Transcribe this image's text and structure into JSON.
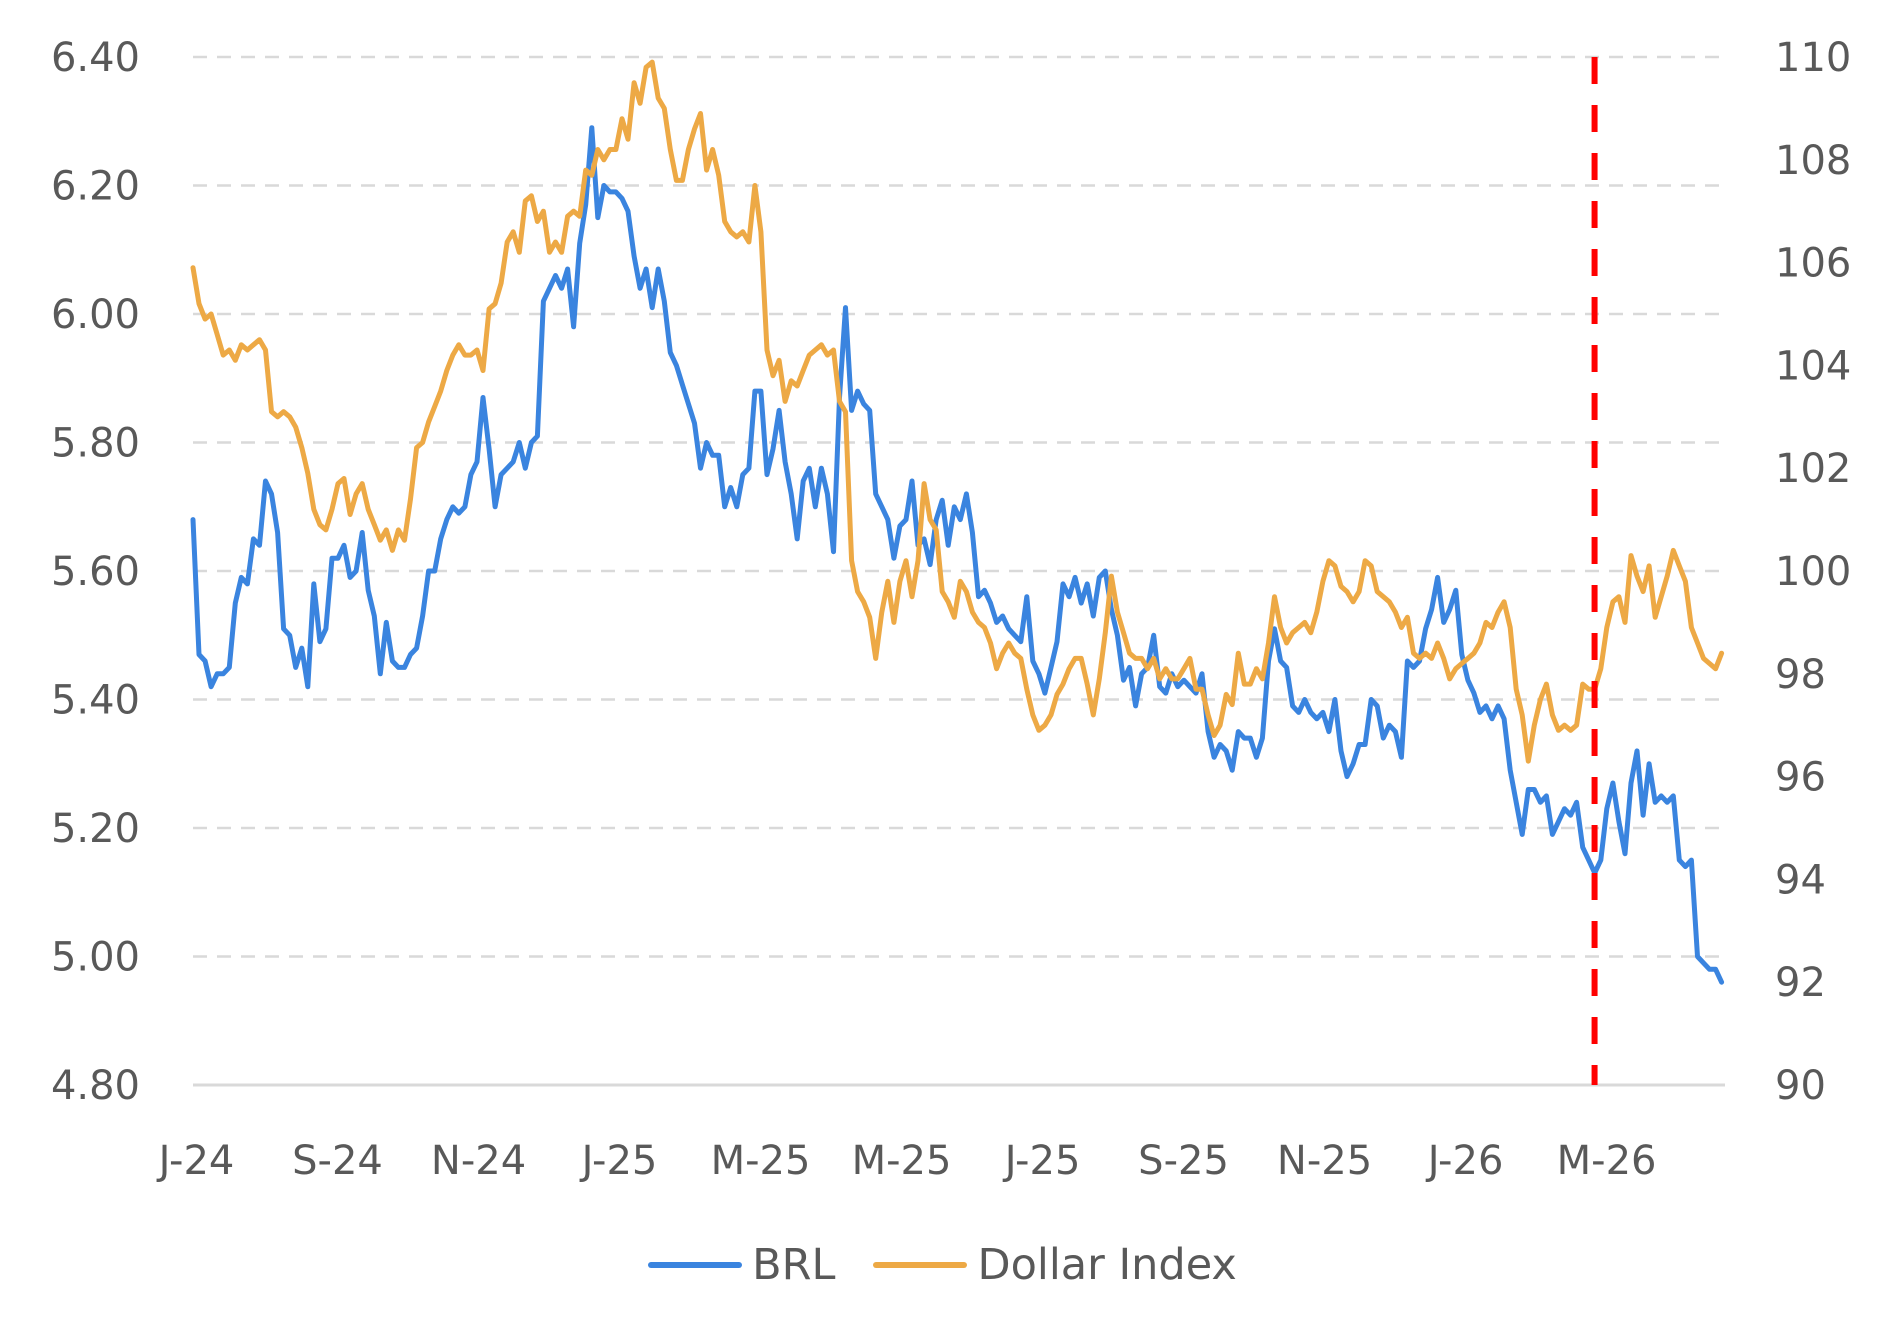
{
  "chart_data": {
    "type": "line",
    "title": "",
    "xlabel": "",
    "ylabel": "",
    "x_unit": "months since Jun-2024",
    "x_start": -0.05,
    "x_step": 0.0857,
    "x_ticks": [
      {
        "value": 0,
        "label": "J-24"
      },
      {
        "value": 2,
        "label": "S-24"
      },
      {
        "value": 4,
        "label": "N-24"
      },
      {
        "value": 6,
        "label": "J-25"
      },
      {
        "value": 8,
        "label": "M-25"
      },
      {
        "value": 10,
        "label": "M-25"
      },
      {
        "value": 12,
        "label": "J-25"
      },
      {
        "value": 14,
        "label": "S-25"
      },
      {
        "value": 16,
        "label": "N-25"
      },
      {
        "value": 18,
        "label": "J-26"
      },
      {
        "value": 20,
        "label": "M-26"
      }
    ],
    "xlim": [
      -0.05,
      21.68
    ],
    "y_left": {
      "ylim": [
        4.8,
        6.4
      ],
      "ticks": [
        "4.80",
        "5.00",
        "5.20",
        "5.40",
        "5.60",
        "5.80",
        "6.00",
        "6.20",
        "6.40"
      ],
      "tick_values": [
        4.8,
        5.0,
        5.2,
        5.4,
        5.6,
        5.8,
        6.0,
        6.2,
        6.4
      ]
    },
    "y_right": {
      "ylim": [
        90,
        110
      ],
      "ticks": [
        "90",
        "92",
        "94",
        "96",
        "98",
        "100",
        "102",
        "104",
        "106",
        "108",
        "110"
      ],
      "tick_values": [
        90,
        92,
        94,
        96,
        98,
        100,
        102,
        104,
        106,
        108,
        110
      ]
    },
    "grid": true,
    "legend_position": "bottom-center",
    "vertical_marker": {
      "x": 19.83,
      "color": "#FF0000",
      "style": "dashed"
    },
    "series": [
      {
        "name": "BRL",
        "axis": "left",
        "color": "#3A84DF",
        "values": [
          5.68,
          5.47,
          5.46,
          5.42,
          5.44,
          5.44,
          5.45,
          5.55,
          5.59,
          5.58,
          5.65,
          5.64,
          5.74,
          5.72,
          5.66,
          5.51,
          5.5,
          5.45,
          5.48,
          5.42,
          5.58,
          5.49,
          5.51,
          5.62,
          5.62,
          5.64,
          5.59,
          5.6,
          5.66,
          5.57,
          5.53,
          5.44,
          5.52,
          5.46,
          5.45,
          5.45,
          5.47,
          5.48,
          5.53,
          5.6,
          5.6,
          5.65,
          5.68,
          5.7,
          5.69,
          5.7,
          5.75,
          5.77,
          5.87,
          5.79,
          5.7,
          5.75,
          5.76,
          5.77,
          5.8,
          5.76,
          5.8,
          5.81,
          6.02,
          6.04,
          6.06,
          6.04,
          6.07,
          5.98,
          6.11,
          6.17,
          6.29,
          6.15,
          6.2,
          6.19,
          6.19,
          6.18,
          6.16,
          6.09,
          6.04,
          6.07,
          6.01,
          6.07,
          6.02,
          5.94,
          5.92,
          5.89,
          5.86,
          5.83,
          5.76,
          5.8,
          5.78,
          5.78,
          5.7,
          5.73,
          5.7,
          5.75,
          5.76,
          5.88,
          5.88,
          5.75,
          5.79,
          5.85,
          5.77,
          5.72,
          5.65,
          5.74,
          5.76,
          5.7,
          5.76,
          5.72,
          5.63,
          5.87,
          6.01,
          5.85,
          5.88,
          5.86,
          5.85,
          5.72,
          5.7,
          5.68,
          5.62,
          5.67,
          5.68,
          5.74,
          5.64,
          5.65,
          5.61,
          5.68,
          5.71,
          5.64,
          5.7,
          5.68,
          5.72,
          5.66,
          5.56,
          5.57,
          5.55,
          5.52,
          5.53,
          5.51,
          5.5,
          5.49,
          5.56,
          5.46,
          5.44,
          5.41,
          5.45,
          5.49,
          5.58,
          5.56,
          5.59,
          5.55,
          5.58,
          5.53,
          5.59,
          5.6,
          5.54,
          5.5,
          5.43,
          5.45,
          5.39,
          5.44,
          5.45,
          5.5,
          5.42,
          5.41,
          5.44,
          5.42,
          5.43,
          5.42,
          5.41,
          5.44,
          5.35,
          5.31,
          5.33,
          5.32,
          5.29,
          5.35,
          5.34,
          5.34,
          5.31,
          5.34,
          5.46,
          5.51,
          5.46,
          5.45,
          5.39,
          5.38,
          5.4,
          5.38,
          5.37,
          5.38,
          5.35,
          5.4,
          5.32,
          5.28,
          5.3,
          5.33,
          5.33,
          5.4,
          5.39,
          5.34,
          5.36,
          5.35,
          5.31,
          5.46,
          5.45,
          5.46,
          5.51,
          5.54,
          5.59,
          5.52,
          5.54,
          5.57,
          5.47,
          5.43,
          5.41,
          5.38,
          5.39,
          5.37,
          5.39,
          5.37,
          5.29,
          5.24,
          5.19,
          5.26,
          5.26,
          5.24,
          5.25,
          5.19,
          5.21,
          5.23,
          5.22,
          5.24,
          5.17,
          5.15,
          5.13,
          5.15,
          5.23,
          5.27,
          5.21,
          5.16,
          5.27,
          5.32,
          5.22,
          5.3,
          5.24,
          5.25,
          5.24,
          5.25,
          5.15,
          5.14,
          5.15,
          5.0,
          4.99,
          4.98,
          4.98,
          4.96
        ]
      },
      {
        "name": "Dollar Index",
        "axis": "right",
        "color": "#EDA945",
        "values": [
          105.9,
          105.2,
          104.9,
          105.0,
          104.6,
          104.2,
          104.3,
          104.1,
          104.4,
          104.3,
          104.4,
          104.5,
          104.3,
          103.1,
          103.0,
          103.1,
          103.0,
          102.8,
          102.4,
          101.9,
          101.2,
          100.9,
          100.8,
          101.2,
          101.7,
          101.8,
          101.1,
          101.5,
          101.7,
          101.2,
          100.9,
          100.6,
          100.8,
          100.4,
          100.8,
          100.6,
          101.4,
          102.4,
          102.5,
          102.9,
          103.2,
          103.5,
          103.9,
          104.2,
          104.4,
          104.2,
          104.2,
          104.3,
          103.9,
          105.1,
          105.2,
          105.6,
          106.4,
          106.6,
          106.2,
          107.2,
          107.3,
          106.8,
          107.0,
          106.2,
          106.4,
          106.2,
          106.9,
          107.0,
          106.9,
          107.8,
          107.7,
          108.2,
          108.0,
          108.2,
          108.2,
          108.8,
          108.4,
          109.5,
          109.1,
          109.8,
          109.9,
          109.2,
          109.0,
          108.2,
          107.6,
          107.6,
          108.2,
          108.6,
          108.9,
          107.8,
          108.2,
          107.7,
          106.8,
          106.6,
          106.5,
          106.6,
          106.4,
          107.5,
          106.6,
          104.3,
          103.8,
          104.1,
          103.3,
          103.7,
          103.6,
          103.9,
          104.2,
          104.3,
          104.4,
          104.2,
          104.3,
          103.3,
          103.1,
          100.2,
          99.6,
          99.4,
          99.1,
          98.3,
          99.2,
          99.8,
          99.0,
          99.8,
          100.2,
          99.5,
          100.2,
          101.7,
          101.0,
          100.8,
          99.6,
          99.4,
          99.1,
          99.8,
          99.6,
          99.2,
          99.0,
          98.9,
          98.6,
          98.1,
          98.4,
          98.6,
          98.4,
          98.3,
          97.7,
          97.2,
          96.9,
          97.0,
          97.2,
          97.6,
          97.8,
          98.1,
          98.3,
          98.3,
          97.8,
          97.2,
          97.9,
          98.8,
          99.9,
          99.2,
          98.8,
          98.4,
          98.3,
          98.3,
          98.1,
          98.3,
          97.9,
          98.1,
          97.9,
          97.9,
          98.1,
          98.3,
          97.7,
          97.7,
          97.2,
          96.8,
          97.0,
          97.6,
          97.4,
          98.4,
          97.8,
          97.8,
          98.1,
          97.9,
          98.6,
          99.5,
          98.9,
          98.6,
          98.8,
          98.9,
          99.0,
          98.8,
          99.2,
          99.8,
          100.2,
          100.1,
          99.7,
          99.6,
          99.4,
          99.6,
          100.2,
          100.1,
          99.6,
          99.5,
          99.4,
          99.2,
          98.9,
          99.1,
          98.4,
          98.3,
          98.4,
          98.3,
          98.6,
          98.3,
          97.9,
          98.1,
          98.2,
          98.3,
          98.4,
          98.6,
          99.0,
          98.9,
          99.2,
          99.4,
          98.9,
          97.7,
          97.2,
          96.3,
          97.0,
          97.5,
          97.8,
          97.2,
          96.9,
          97.0,
          96.9,
          97.0,
          97.8,
          97.7,
          97.7,
          98.1,
          98.9,
          99.4,
          99.5,
          99.0,
          100.3,
          99.9,
          99.6,
          100.1,
          99.1,
          99.5,
          99.9,
          100.4,
          100.1,
          99.8,
          98.9,
          98.6,
          98.3,
          98.2,
          98.1,
          98.4
        ]
      }
    ]
  },
  "legend": {
    "items": [
      {
        "label": "BRL",
        "color": "#3A84DF"
      },
      {
        "label": "Dollar Index",
        "color": "#EDA945"
      }
    ]
  }
}
